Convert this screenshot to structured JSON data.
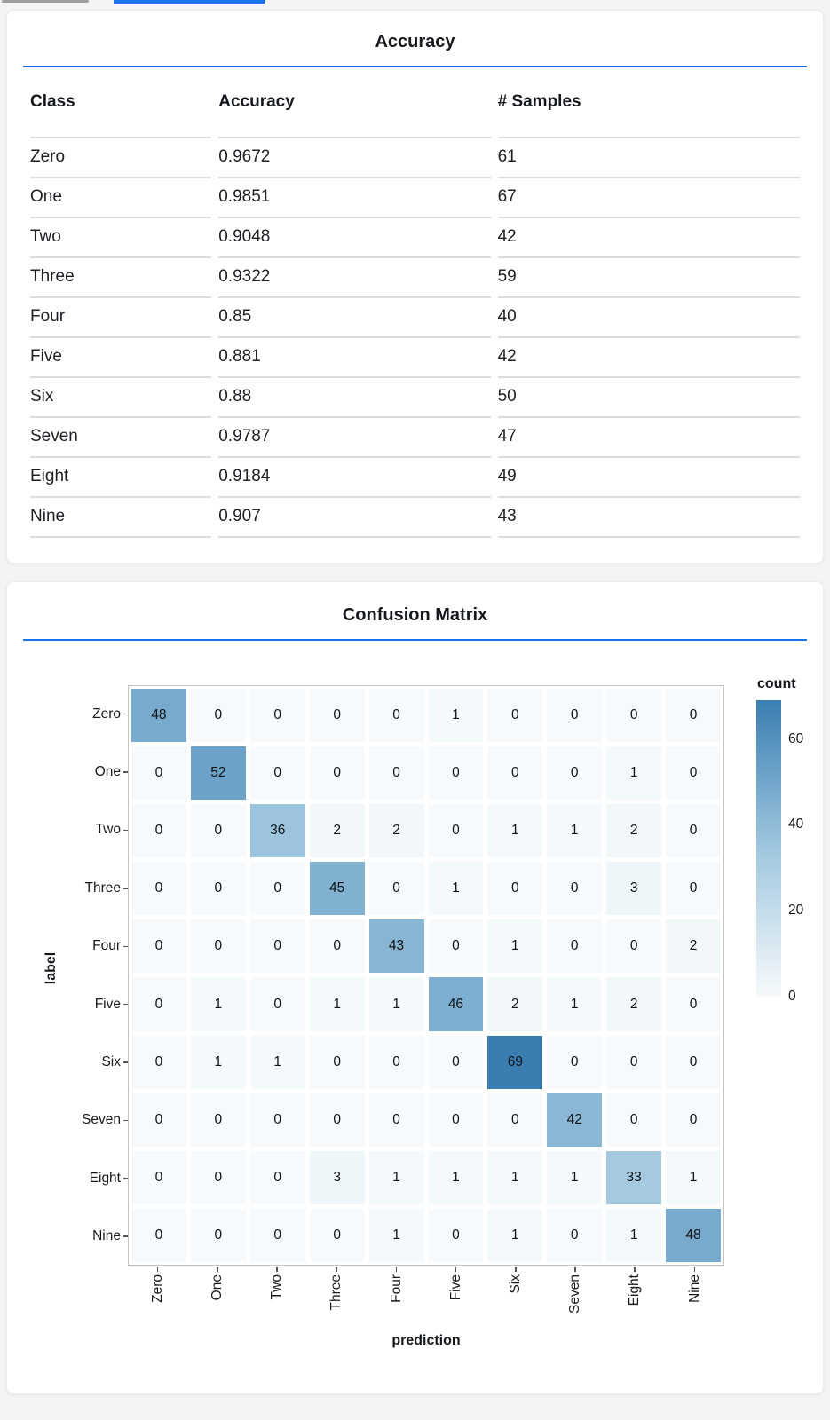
{
  "page": {
    "background": "#f3f4f5"
  },
  "tab_bar": {
    "inactive_indicator_color": "#9e9e9e",
    "active_indicator_color": "#1a73e8"
  },
  "accuracy_card": {
    "title": "Accuracy",
    "accent_color": "#1a73e8"
  },
  "confusion_card": {
    "title": "Confusion Matrix",
    "accent_color": "#1a73e8"
  },
  "chart_data": [
    {
      "type": "table",
      "title": "Accuracy",
      "columns": [
        "Class",
        "Accuracy",
        "# Samples"
      ],
      "rows": [
        [
          "Zero",
          "0.9672",
          "61"
        ],
        [
          "One",
          "0.9851",
          "67"
        ],
        [
          "Two",
          "0.9048",
          "42"
        ],
        [
          "Three",
          "0.9322",
          "59"
        ],
        [
          "Four",
          "0.85",
          "40"
        ],
        [
          "Five",
          "0.881",
          "42"
        ],
        [
          "Six",
          "0.88",
          "50"
        ],
        [
          "Seven",
          "0.9787",
          "47"
        ],
        [
          "Eight",
          "0.9184",
          "49"
        ],
        [
          "Nine",
          "0.907",
          "43"
        ]
      ]
    },
    {
      "type": "heatmap",
      "title": "Confusion Matrix",
      "xlabel": "prediction",
      "ylabel": "label",
      "x_categories": [
        "Zero",
        "One",
        "Two",
        "Three",
        "Four",
        "Five",
        "Six",
        "Seven",
        "Eight",
        "Nine"
      ],
      "y_categories": [
        "Zero",
        "One",
        "Two",
        "Three",
        "Four",
        "Five",
        "Six",
        "Seven",
        "Eight",
        "Nine"
      ],
      "matrix": [
        [
          48,
          0,
          0,
          0,
          0,
          1,
          0,
          0,
          0,
          0
        ],
        [
          0,
          52,
          0,
          0,
          0,
          0,
          0,
          0,
          1,
          0
        ],
        [
          0,
          0,
          36,
          2,
          2,
          0,
          1,
          1,
          2,
          0
        ],
        [
          0,
          0,
          0,
          45,
          0,
          1,
          0,
          0,
          3,
          0
        ],
        [
          0,
          0,
          0,
          0,
          43,
          0,
          1,
          0,
          0,
          2
        ],
        [
          0,
          1,
          0,
          1,
          1,
          46,
          2,
          1,
          2,
          0
        ],
        [
          0,
          1,
          1,
          0,
          0,
          0,
          69,
          0,
          0,
          0
        ],
        [
          0,
          0,
          0,
          0,
          0,
          0,
          0,
          42,
          0,
          0
        ],
        [
          0,
          0,
          0,
          3,
          1,
          1,
          1,
          1,
          33,
          1
        ],
        [
          0,
          0,
          0,
          0,
          1,
          0,
          1,
          0,
          1,
          48
        ]
      ],
      "color_scale": {
        "scheme": "blues",
        "domain": [
          0,
          69
        ],
        "low": "#f7fafc",
        "mid": "#a0c7df",
        "high": "#3a7eb1"
      },
      "legend": {
        "title": "count",
        "ticks": [
          0,
          20,
          40,
          60
        ],
        "position": "right"
      },
      "grid": false
    }
  ]
}
